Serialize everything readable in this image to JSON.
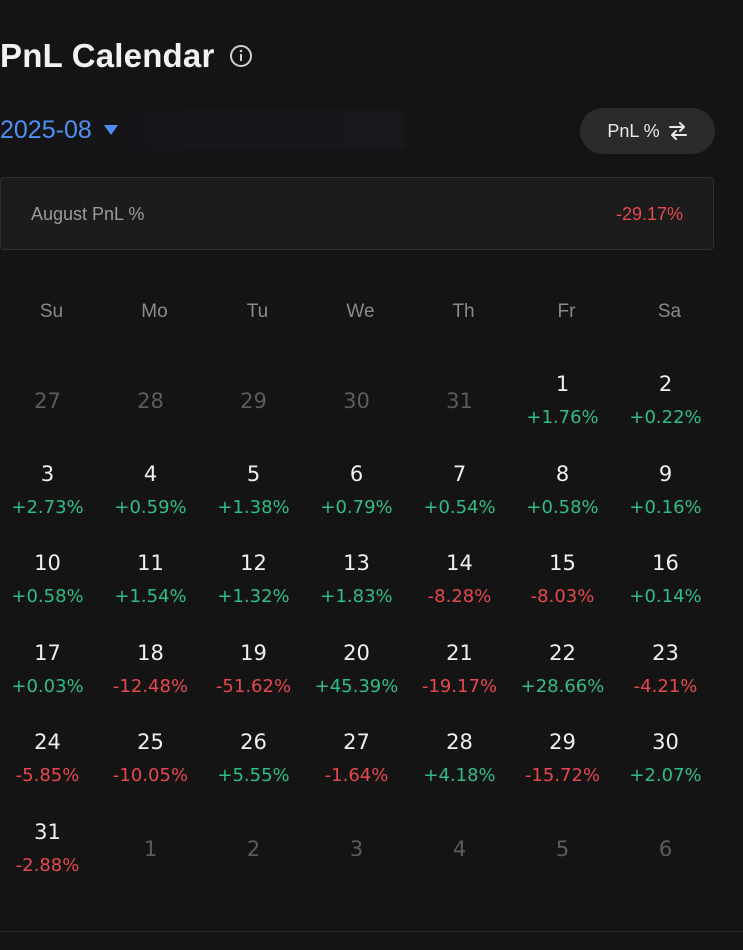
{
  "header": {
    "title": "PnL Calendar",
    "info_icon": "info-circle-icon"
  },
  "month_select": {
    "value": "2025-08",
    "caret_icon": "caret-down-icon"
  },
  "toggle": {
    "label": "PnL %",
    "icon": "swap-arrows-icon"
  },
  "summary": {
    "label": "August PnL %",
    "value": "-29.17%"
  },
  "weekdays": [
    "Su",
    "Mo",
    "Tu",
    "We",
    "Th",
    "Fr",
    "Sa"
  ],
  "colors": {
    "positive": "#2ebd85",
    "negative": "#e5484d",
    "accent": "#4d8ff2"
  },
  "days": [
    {
      "day": "27",
      "pnl": "",
      "other": true
    },
    {
      "day": "28",
      "pnl": "",
      "other": true
    },
    {
      "day": "29",
      "pnl": "",
      "other": true
    },
    {
      "day": "30",
      "pnl": "",
      "other": true
    },
    {
      "day": "31",
      "pnl": "",
      "other": true
    },
    {
      "day": "1",
      "pnl": "+1.76%"
    },
    {
      "day": "2",
      "pnl": "+0.22%"
    },
    {
      "day": "3",
      "pnl": "+2.73%"
    },
    {
      "day": "4",
      "pnl": "+0.59%"
    },
    {
      "day": "5",
      "pnl": "+1.38%"
    },
    {
      "day": "6",
      "pnl": "+0.79%"
    },
    {
      "day": "7",
      "pnl": "+0.54%"
    },
    {
      "day": "8",
      "pnl": "+0.58%"
    },
    {
      "day": "9",
      "pnl": "+0.16%"
    },
    {
      "day": "10",
      "pnl": "+0.58%"
    },
    {
      "day": "11",
      "pnl": "+1.54%"
    },
    {
      "day": "12",
      "pnl": "+1.32%"
    },
    {
      "day": "13",
      "pnl": "+1.83%"
    },
    {
      "day": "14",
      "pnl": "-8.28%"
    },
    {
      "day": "15",
      "pnl": "-8.03%"
    },
    {
      "day": "16",
      "pnl": "+0.14%"
    },
    {
      "day": "17",
      "pnl": "+0.03%"
    },
    {
      "day": "18",
      "pnl": "-12.48%"
    },
    {
      "day": "19",
      "pnl": "-51.62%"
    },
    {
      "day": "20",
      "pnl": "+45.39%"
    },
    {
      "day": "21",
      "pnl": "-19.17%"
    },
    {
      "day": "22",
      "pnl": "+28.66%"
    },
    {
      "day": "23",
      "pnl": "-4.21%"
    },
    {
      "day": "24",
      "pnl": "-5.85%"
    },
    {
      "day": "25",
      "pnl": "-10.05%"
    },
    {
      "day": "26",
      "pnl": "+5.55%"
    },
    {
      "day": "27",
      "pnl": "-1.64%"
    },
    {
      "day": "28",
      "pnl": "+4.18%"
    },
    {
      "day": "29",
      "pnl": "-15.72%"
    },
    {
      "day": "30",
      "pnl": "+2.07%"
    },
    {
      "day": "31",
      "pnl": "-2.88%"
    },
    {
      "day": "1",
      "pnl": "",
      "other": true
    },
    {
      "day": "2",
      "pnl": "",
      "other": true
    },
    {
      "day": "3",
      "pnl": "",
      "other": true
    },
    {
      "day": "4",
      "pnl": "",
      "other": true
    },
    {
      "day": "5",
      "pnl": "",
      "other": true
    },
    {
      "day": "6",
      "pnl": "",
      "other": true
    }
  ]
}
